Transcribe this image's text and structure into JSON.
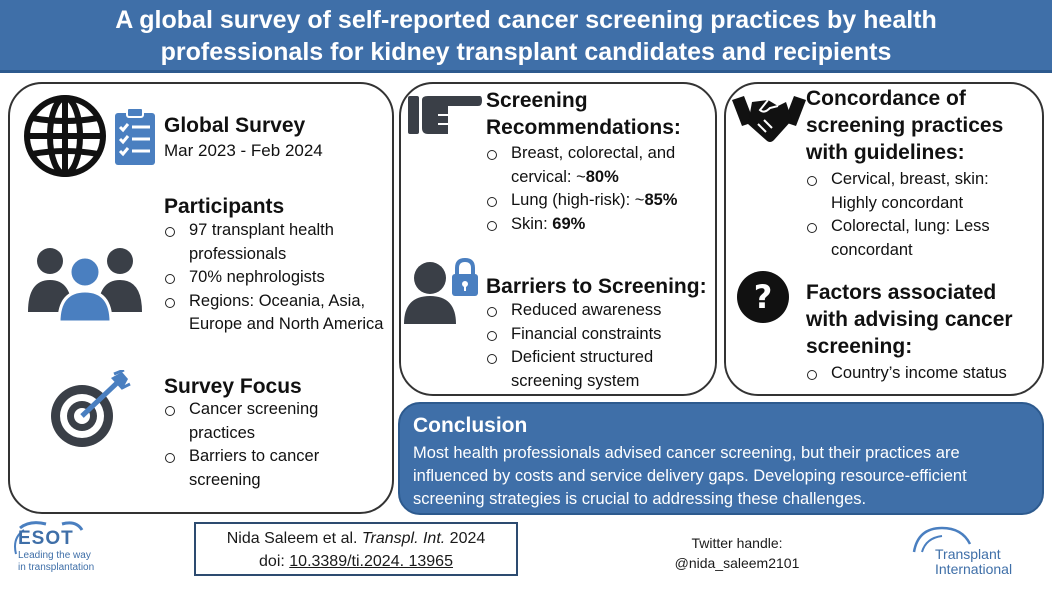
{
  "title": {
    "line1": "A global survey of self-reported cancer screening practices by health",
    "line2": "professionals for kidney transplant candidates and recipients"
  },
  "left_panel": {
    "global_survey": {
      "heading": "Global Survey",
      "dates": "Mar 2023 - Feb 2024"
    },
    "participants": {
      "heading": "Participants",
      "items": [
        "97 transplant health professionals",
        "70% nephrologists",
        "Regions: Oceania, Asia, Europe and North America"
      ]
    },
    "survey_focus": {
      "heading": "Survey Focus",
      "items": [
        "Cancer screening practices",
        "Barriers to cancer screening"
      ]
    }
  },
  "middle_panel": {
    "recommendations": {
      "heading_line1": "Screening",
      "heading_line2": "Recommendations:",
      "items": [
        {
          "text": "Breast, colorectal, and cervical: ~",
          "bold": "80%"
        },
        {
          "text": "Lung (high-risk): ~",
          "bold": "85%"
        },
        {
          "text": "Skin: ",
          "bold": "69%"
        }
      ]
    },
    "barriers": {
      "heading": "Barriers to Screening:",
      "items": [
        "Reduced awareness",
        "Financial constraints",
        "Deficient structured screening system"
      ]
    }
  },
  "right_panel": {
    "concordance": {
      "heading_line1": "Concordance of",
      "heading_line2": "screening practices",
      "heading_line3": "with guidelines:",
      "items": [
        "Cervical, breast, skin: Highly concordant",
        "Colorectal, lung: Less concordant"
      ]
    },
    "factors": {
      "heading_line1": "Factors associated",
      "heading_line2": "with advising cancer",
      "heading_line3": "screening:",
      "items": [
        "Country’s income status"
      ]
    }
  },
  "conclusion": {
    "heading": "Conclusion",
    "text": "Most health professionals advised cancer screening, but their practices are influenced by costs and service delivery gaps. Developing resource-efficient screening strategies is crucial to addressing these challenges."
  },
  "citation": {
    "authors": "Nida Saleem et al. ",
    "journal": "Transpl. Int.",
    "year": " 2024",
    "doi_label": "doi: ",
    "doi": "10.3389/ti.2024. 13965"
  },
  "twitter": {
    "label": "Twitter handle:",
    "handle": "@nida_saleem2101"
  },
  "logos": {
    "esot": {
      "name": "ESOT",
      "tagline1": "Leading the way",
      "tagline2": "in transplantation"
    },
    "transplant_international": {
      "line1": "Transplant",
      "line2": "International"
    }
  },
  "icons": {
    "globe": "globe-icon",
    "clipboard": "clipboard-checklist-icon",
    "people": "people-group-icon",
    "target": "target-arrow-icon",
    "pointing_hand": "pointing-hand-icon",
    "person_lock": "person-lock-icon",
    "handshake": "handshake-icon",
    "question": "question-mark-icon"
  },
  "colors": {
    "brand_blue": "#3f6fa8",
    "icon_dark": "#3a3f47",
    "icon_blue": "#4a7fc0"
  }
}
